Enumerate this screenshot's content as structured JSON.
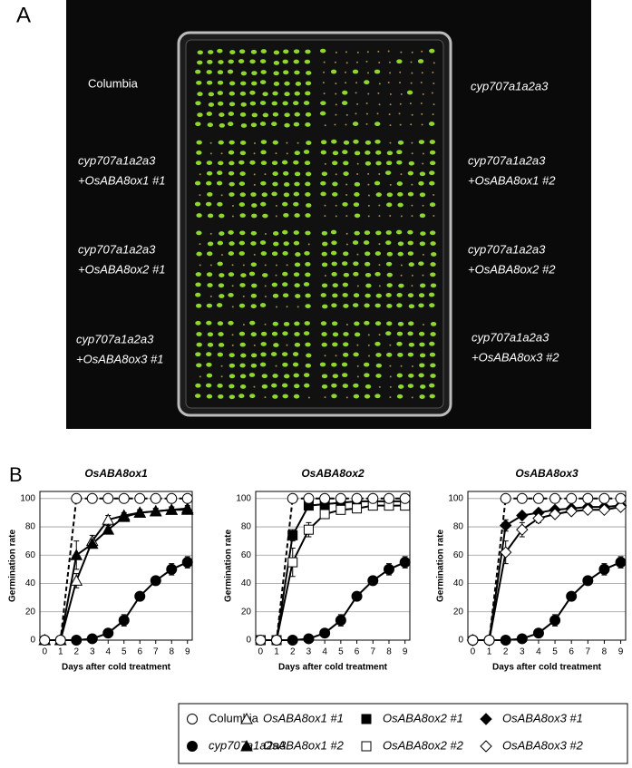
{
  "panel_a": {
    "letter": "A",
    "labels": [
      [
        "Columbia"
      ],
      [
        "cyp707a1a2a3"
      ],
      [
        "cyp707a1a2a3",
        "+OsABA8ox1 #1"
      ],
      [
        "cyp707a1a2a3",
        "+OsABA8ox1 #2"
      ],
      [
        "cyp707a1a2a3",
        "+OsABA8ox2 #1"
      ],
      [
        "cyp707a1a2a3",
        "+OsABA8ox2 #2"
      ],
      [
        "cyp707a1a2a3",
        "+OsABA8ox3 #1"
      ],
      [
        "cyp707a1a2a3",
        "+OsABA8ox3 #2"
      ]
    ]
  },
  "panel_b": {
    "letter": "B"
  },
  "chart_data": [
    {
      "type": "line",
      "title": "OsABA8ox1",
      "xlabel": "Days after cold treatment",
      "ylabel": "Germination rate",
      "x": [
        0,
        1,
        2,
        3,
        4,
        5,
        6,
        7,
        8,
        9
      ],
      "xlim": [
        -0.3,
        9.3
      ],
      "xticks": [
        0,
        1,
        2,
        3,
        4,
        5,
        6,
        7,
        8,
        9
      ],
      "ylim": [
        0,
        105
      ],
      "yticks": [
        0,
        20,
        40,
        60,
        80,
        100
      ],
      "grid": true,
      "series": [
        {
          "name": "Columbia",
          "color": "#000000",
          "marker": "circle",
          "filled": false,
          "dashed": true,
          "values": [
            0,
            0,
            100,
            100,
            100,
            100,
            100,
            100,
            100,
            100
          ],
          "errors": [
            0,
            0,
            0,
            0,
            0,
            0,
            0,
            0,
            0,
            0
          ]
        },
        {
          "name": "cyp707a1a2a3",
          "color": "#000000",
          "marker": "circle",
          "filled": true,
          "dashed": false,
          "values": [
            0,
            0,
            0,
            1,
            5,
            14,
            31,
            42,
            50,
            55
          ],
          "errors": [
            0,
            0,
            0,
            1,
            3,
            4,
            2,
            2,
            4,
            4
          ]
        },
        {
          "name": "OsABA8ox1 #1",
          "color": "#000000",
          "marker": "triangle",
          "filled": false,
          "dashed": false,
          "values": [
            0,
            0,
            42,
            70,
            85,
            88,
            90,
            91,
            92,
            93
          ],
          "errors": [
            0,
            0,
            5,
            4,
            3,
            2,
            2,
            2,
            2,
            2
          ]
        },
        {
          "name": "OsABA8ox1 #2",
          "color": "#000000",
          "marker": "triangle",
          "filled": true,
          "dashed": false,
          "values": [
            0,
            0,
            60,
            68,
            78,
            87,
            90,
            91,
            92,
            92
          ],
          "errors": [
            0,
            0,
            10,
            3,
            3,
            2,
            2,
            2,
            2,
            2
          ]
        }
      ]
    },
    {
      "type": "line",
      "title": "OsABA8ox2",
      "xlabel": "Days after cold treatment",
      "ylabel": "Germination rate",
      "x": [
        0,
        1,
        2,
        3,
        4,
        5,
        6,
        7,
        8,
        9
      ],
      "xlim": [
        -0.3,
        9.3
      ],
      "xticks": [
        0,
        1,
        2,
        3,
        4,
        5,
        6,
        7,
        8,
        9
      ],
      "ylim": [
        0,
        105
      ],
      "yticks": [
        0,
        20,
        40,
        60,
        80,
        100
      ],
      "grid": true,
      "series": [
        {
          "name": "Columbia",
          "color": "#000000",
          "marker": "circle",
          "filled": false,
          "dashed": true,
          "values": [
            0,
            0,
            100,
            100,
            100,
            100,
            100,
            100,
            100,
            100
          ],
          "errors": [
            0,
            0,
            0,
            0,
            0,
            0,
            0,
            0,
            0,
            0
          ]
        },
        {
          "name": "cyp707a1a2a3",
          "color": "#000000",
          "marker": "circle",
          "filled": true,
          "dashed": false,
          "values": [
            0,
            0,
            0,
            1,
            5,
            14,
            31,
            42,
            50,
            55
          ],
          "errors": [
            0,
            0,
            0,
            1,
            3,
            4,
            2,
            2,
            4,
            4
          ]
        },
        {
          "name": "OsABA8ox2 #1",
          "color": "#000000",
          "marker": "square",
          "filled": true,
          "dashed": false,
          "values": [
            0,
            0,
            74,
            95,
            96,
            97,
            98,
            98,
            98,
            98
          ],
          "errors": [
            0,
            0,
            4,
            2,
            2,
            1,
            1,
            1,
            1,
            1
          ]
        },
        {
          "name": "OsABA8ox2 #2",
          "color": "#000000",
          "marker": "square",
          "filled": false,
          "dashed": false,
          "values": [
            0,
            0,
            55,
            78,
            89,
            92,
            93,
            95,
            95,
            95
          ],
          "errors": [
            0,
            0,
            10,
            5,
            3,
            2,
            2,
            2,
            2,
            2
          ]
        }
      ]
    },
    {
      "type": "line",
      "title": "OsABA8ox3",
      "xlabel": "Days after cold treatment",
      "ylabel": "Germination rate",
      "x": [
        0,
        1,
        2,
        3,
        4,
        5,
        6,
        7,
        8,
        9
      ],
      "xlim": [
        -0.3,
        9.3
      ],
      "xticks": [
        0,
        1,
        2,
        3,
        4,
        5,
        6,
        7,
        8,
        9
      ],
      "ylim": [
        0,
        105
      ],
      "yticks": [
        0,
        20,
        40,
        60,
        80,
        100
      ],
      "grid": true,
      "series": [
        {
          "name": "Columbia",
          "color": "#000000",
          "marker": "circle",
          "filled": false,
          "dashed": true,
          "values": [
            0,
            0,
            100,
            100,
            100,
            100,
            100,
            100,
            100,
            100
          ],
          "errors": [
            0,
            0,
            0,
            0,
            0,
            0,
            0,
            0,
            0,
            0
          ]
        },
        {
          "name": "cyp707a1a2a3",
          "color": "#000000",
          "marker": "circle",
          "filled": true,
          "dashed": false,
          "values": [
            0,
            0,
            0,
            1,
            5,
            14,
            31,
            42,
            50,
            55
          ],
          "errors": [
            0,
            0,
            0,
            1,
            3,
            4,
            2,
            2,
            4,
            4
          ]
        },
        {
          "name": "OsABA8ox3 #1",
          "color": "#000000",
          "marker": "diamond",
          "filled": true,
          "dashed": false,
          "values": [
            0,
            0,
            81,
            88,
            90,
            92,
            93,
            94,
            94,
            95
          ],
          "errors": [
            0,
            0,
            4,
            2,
            2,
            2,
            1,
            1,
            1,
            1
          ]
        },
        {
          "name": "OsABA8ox3 #2",
          "color": "#000000",
          "marker": "diamond",
          "filled": false,
          "dashed": false,
          "values": [
            0,
            0,
            62,
            78,
            86,
            89,
            91,
            92,
            92,
            94
          ],
          "errors": [
            0,
            0,
            8,
            5,
            3,
            2,
            2,
            2,
            2,
            2
          ]
        }
      ]
    }
  ]
}
